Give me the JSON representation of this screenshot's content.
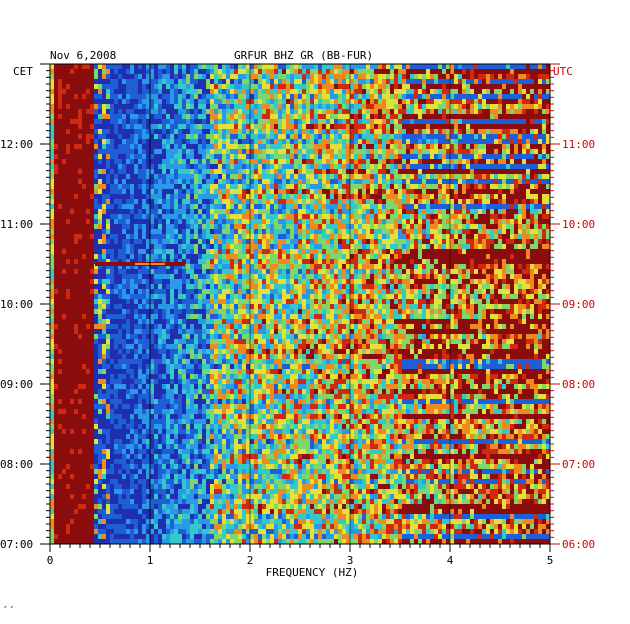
{
  "header": {
    "date": "Nov 6,2008",
    "station": "GRFUR BHZ GR (BB-FUR)",
    "left_zone": "CET",
    "right_zone": "UTC"
  },
  "footer": {
    "mark": "′′"
  },
  "colors": {
    "red_axis": "#d40000",
    "palette": [
      "#1f2fb0",
      "#1e5fd8",
      "#2a9ae8",
      "#33c9c8",
      "#7fd66a",
      "#e4e03a",
      "#ef8a1e",
      "#cf2a10",
      "#8a0c0c"
    ]
  },
  "chart_data": {
    "type": "heatmap",
    "title": "GRFUR BHZ GR (BB-FUR)",
    "date": "Nov 6,2008",
    "xlabel": "FREQUENCY (HZ)",
    "xlim": [
      0,
      5
    ],
    "x_ticks": [
      "0",
      "1",
      "2",
      "3",
      "4",
      "5"
    ],
    "left_axis": {
      "label": "CET",
      "ticks": [
        "07:00",
        "08:00",
        "09:00",
        "10:00",
        "11:00",
        "12:00"
      ]
    },
    "right_axis": {
      "label": "UTC",
      "ticks": [
        "06:00",
        "07:00",
        "08:00",
        "09:00",
        "10:00",
        "11:00"
      ]
    },
    "time_range_cet": [
      "07:00",
      "13:00"
    ],
    "grid": false,
    "features": [
      {
        "kind": "band",
        "x_range": [
          0.05,
          0.45
        ],
        "level": "max"
      },
      {
        "kind": "band",
        "x_range": [
          0.45,
          1.6
        ],
        "level": "low"
      },
      {
        "kind": "event_line",
        "time_cet": "10:30",
        "x_range": [
          0.45,
          1.35
        ]
      }
    ]
  }
}
